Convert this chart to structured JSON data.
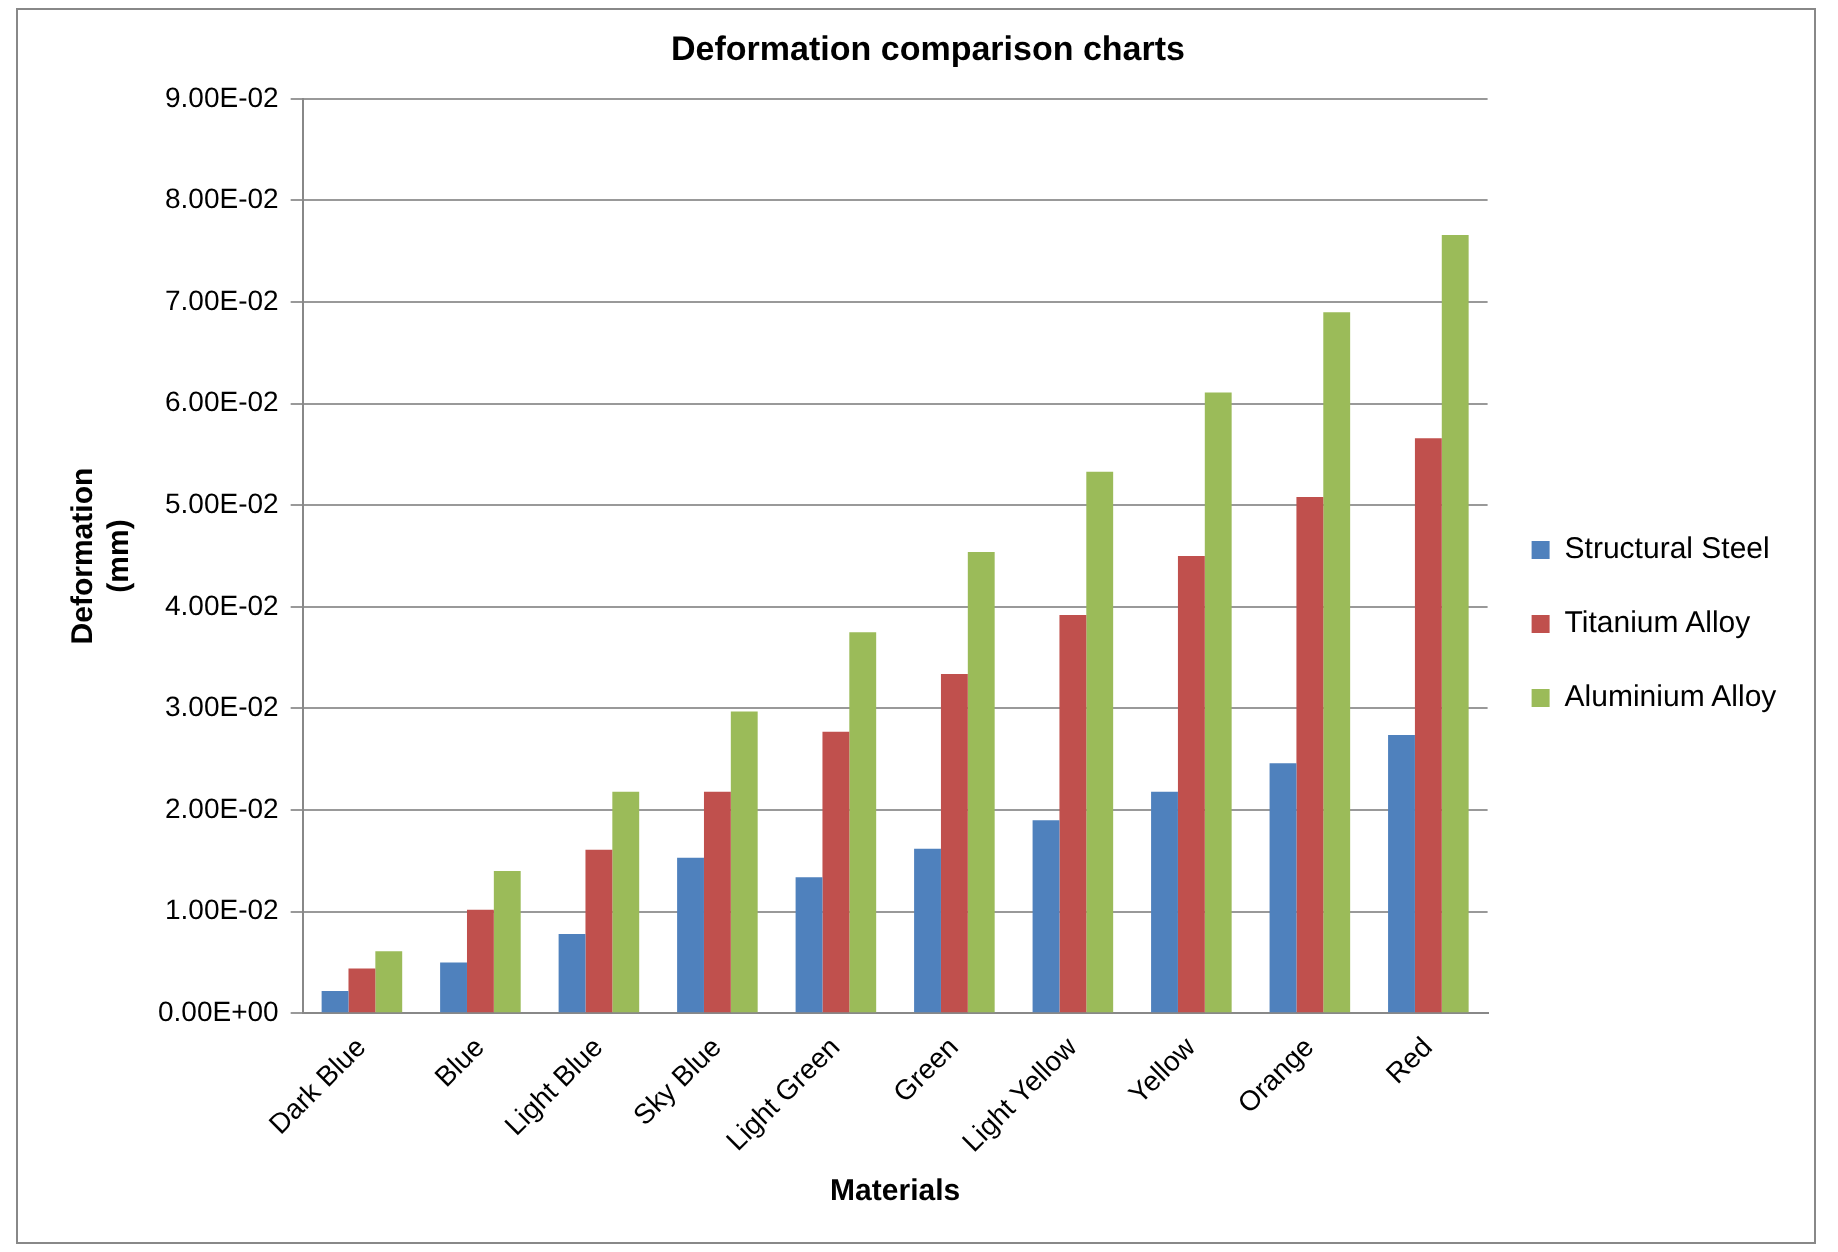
{
  "chart_data": {
    "type": "bar",
    "title": "Deformation comparison charts",
    "xlabel": "Materials",
    "ylabel": "Deformation\n(mm)",
    "categories": [
      "Dark Blue",
      "Blue",
      "Light Blue",
      "Sky Blue",
      "Light Green",
      "Green",
      "Light Yellow",
      "Yellow",
      "Orange",
      "Red"
    ],
    "series": [
      {
        "name": "Structural Steel",
        "color": "#4f81bd",
        "values": [
          0.0022,
          0.005,
          0.0078,
          0.0153,
          0.0134,
          0.0162,
          0.019,
          0.0218,
          0.0246,
          0.0274
        ]
      },
      {
        "name": "Titanium Alloy",
        "color": "#c0504d",
        "values": [
          0.0044,
          0.0102,
          0.0161,
          0.0218,
          0.0277,
          0.0334,
          0.0392,
          0.045,
          0.0508,
          0.0566
        ]
      },
      {
        "name": "Aluminium Alloy",
        "color": "#9bbb59",
        "values": [
          0.0061,
          0.014,
          0.0218,
          0.0297,
          0.0375,
          0.0454,
          0.0533,
          0.0611,
          0.069,
          0.0766
        ]
      }
    ],
    "ylim": [
      0,
      0.09
    ],
    "yticks": [
      {
        "value": 0,
        "label": "0.00E+00"
      },
      {
        "value": 0.01,
        "label": "1.00E-02"
      },
      {
        "value": 0.02,
        "label": "2.00E-02"
      },
      {
        "value": 0.03,
        "label": "3.00E-02"
      },
      {
        "value": 0.04,
        "label": "4.00E-02"
      },
      {
        "value": 0.05,
        "label": "5.00E-02"
      },
      {
        "value": 0.06,
        "label": "6.00E-02"
      },
      {
        "value": 0.07,
        "label": "7.00E-02"
      },
      {
        "value": 0.08,
        "label": "8.00E-02"
      },
      {
        "value": 0.09,
        "label": "9.00E-02"
      }
    ],
    "grid": "y",
    "legend": "right"
  }
}
